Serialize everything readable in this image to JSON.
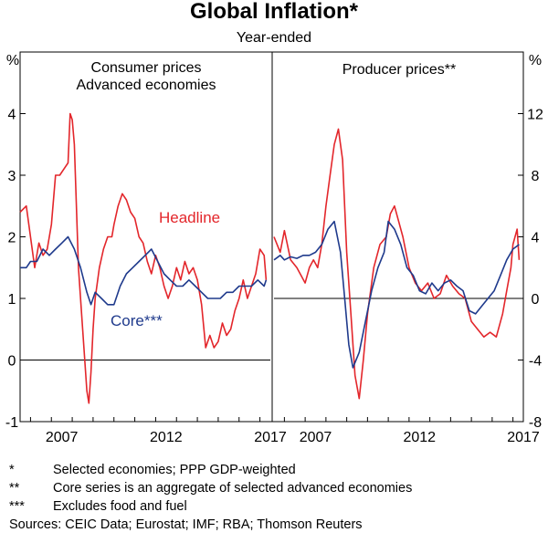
{
  "chart_data": {
    "type": "line",
    "title": "Global Inflation*",
    "subtitle": "Year-ended",
    "footnotes": [
      {
        "mark": "*",
        "text": "Selected economies; PPP GDP-weighted"
      },
      {
        "mark": "**",
        "text": "Core series is an aggregate of selected advanced economies"
      },
      {
        "mark": "***",
        "text": "Excludes food and fuel"
      }
    ],
    "sources": "Sources: CEIC Data; Eurostat; IMF; RBA; Thomson Reuters",
    "panels": [
      {
        "title": "Consumer prices",
        "subtitle": "Advanced economies",
        "yaxis_side": "left",
        "ylabel": "%",
        "ylim": [
          -1,
          5
        ],
        "yticks": [
          "-1",
          "0",
          "1",
          "2",
          "3",
          "4"
        ],
        "xlim": [
          2005.5,
          2017.5
        ],
        "xticks": [
          "2007",
          "2012",
          "2017"
        ],
        "series": [
          {
            "name": "Headline",
            "color": "#e3262b",
            "x": [
              2005.5,
              2005.8,
              2006.0,
              2006.2,
              2006.4,
              2006.6,
              2006.8,
              2007.0,
              2007.2,
              2007.4,
              2007.6,
              2007.8,
              2007.9,
              2008.0,
              2008.1,
              2008.3,
              2008.5,
              2008.7,
              2008.8,
              2008.9,
              2009.0,
              2009.1,
              2009.3,
              2009.5,
              2009.7,
              2009.9,
              2010.0,
              2010.2,
              2010.4,
              2010.6,
              2010.8,
              2011.0,
              2011.2,
              2011.4,
              2011.6,
              2011.8,
              2012.0,
              2012.2,
              2012.4,
              2012.6,
              2012.8,
              2013.0,
              2013.2,
              2013.4,
              2013.6,
              2013.8,
              2014.0,
              2014.2,
              2014.4,
              2014.6,
              2014.8,
              2015.0,
              2015.2,
              2015.4,
              2015.6,
              2015.8,
              2016.0,
              2016.2,
              2016.4,
              2016.6,
              2016.8,
              2017.0,
              2017.2,
              2017.3
            ],
            "values": [
              2.4,
              2.5,
              2.0,
              1.5,
              1.9,
              1.7,
              1.8,
              2.2,
              3.0,
              3.0,
              3.1,
              3.2,
              4.0,
              3.9,
              3.5,
              1.5,
              0.5,
              -0.5,
              -0.7,
              -0.2,
              0.5,
              1.0,
              1.5,
              1.8,
              2.0,
              2.0,
              2.2,
              2.5,
              2.7,
              2.6,
              2.4,
              2.3,
              2.0,
              1.9,
              1.6,
              1.4,
              1.7,
              1.5,
              1.2,
              1.0,
              1.2,
              1.5,
              1.3,
              1.6,
              1.4,
              1.5,
              1.3,
              0.9,
              0.2,
              0.4,
              0.2,
              0.3,
              0.6,
              0.4,
              0.5,
              0.8,
              1.0,
              1.3,
              1.0,
              1.2,
              1.4,
              1.8,
              1.7,
              1.3
            ]
          },
          {
            "name": "Core***",
            "color": "#1f3a8c",
            "x": [
              2005.5,
              2005.8,
              2006.0,
              2006.3,
              2006.6,
              2006.9,
              2007.2,
              2007.5,
              2007.8,
              2008.1,
              2008.4,
              2008.7,
              2008.9,
              2009.1,
              2009.4,
              2009.7,
              2010.0,
              2010.3,
              2010.6,
              2010.9,
              2011.2,
              2011.5,
              2011.8,
              2012.1,
              2012.4,
              2012.7,
              2013.0,
              2013.3,
              2013.6,
              2013.9,
              2014.2,
              2014.5,
              2014.8,
              2015.1,
              2015.4,
              2015.7,
              2016.0,
              2016.3,
              2016.6,
              2016.9,
              2017.2,
              2017.3
            ],
            "values": [
              1.5,
              1.5,
              1.6,
              1.6,
              1.8,
              1.7,
              1.8,
              1.9,
              2.0,
              1.8,
              1.5,
              1.1,
              0.9,
              1.1,
              1.0,
              0.9,
              0.9,
              1.2,
              1.4,
              1.5,
              1.6,
              1.7,
              1.8,
              1.6,
              1.4,
              1.3,
              1.2,
              1.2,
              1.3,
              1.2,
              1.1,
              1.0,
              1.0,
              1.0,
              1.1,
              1.1,
              1.2,
              1.2,
              1.2,
              1.3,
              1.2,
              1.3
            ]
          }
        ],
        "annotations": [
          {
            "text": "Headline",
            "series": "Headline"
          },
          {
            "text": "Core***",
            "series": "Core***"
          }
        ]
      },
      {
        "title": "Producer prices**",
        "yaxis_side": "right",
        "ylabel": "%",
        "ylim": [
          -8,
          16
        ],
        "yticks": [
          "-8",
          "-4",
          "0",
          "4",
          "8",
          "12"
        ],
        "xlim": [
          2005.5,
          2017.5
        ],
        "xticks": [
          "2007",
          "2012",
          "2017"
        ],
        "series": [
          {
            "name": "Headline",
            "color": "#e3262b",
            "x": [
              2005.5,
              2005.8,
              2006.0,
              2006.3,
              2006.6,
              2006.8,
              2007.0,
              2007.2,
              2007.4,
              2007.6,
              2007.8,
              2008.0,
              2008.2,
              2008.4,
              2008.6,
              2008.8,
              2009.0,
              2009.2,
              2009.4,
              2009.6,
              2009.8,
              2010.0,
              2010.3,
              2010.6,
              2010.9,
              2011.1,
              2011.3,
              2011.5,
              2011.7,
              2012.0,
              2012.3,
              2012.6,
              2012.9,
              2013.2,
              2013.5,
              2013.8,
              2014.1,
              2014.4,
              2014.7,
              2015.0,
              2015.3,
              2015.6,
              2015.9,
              2016.2,
              2016.5,
              2016.7,
              2016.9,
              2017.0,
              2017.2,
              2017.3
            ],
            "values": [
              4.0,
              3.0,
              4.4,
              2.5,
              2.0,
              1.5,
              1.0,
              2.0,
              2.5,
              2.0,
              3.5,
              6.0,
              8.0,
              10.0,
              11.0,
              9.0,
              3.0,
              -1.0,
              -5.0,
              -6.5,
              -4.0,
              -1.0,
              2.0,
              3.5,
              4.0,
              5.5,
              6.0,
              5.0,
              4.0,
              2.0,
              1.0,
              0.5,
              1.0,
              0.0,
              0.3,
              1.5,
              0.8,
              0.3,
              0.0,
              -1.5,
              -2.0,
              -2.5,
              -2.2,
              -2.5,
              -1.0,
              0.5,
              2.0,
              3.5,
              4.5,
              2.5
            ]
          },
          {
            "name": "Core",
            "color": "#1f3a8c",
            "x": [
              2005.5,
              2005.8,
              2006.0,
              2006.3,
              2006.6,
              2006.9,
              2007.2,
              2007.5,
              2007.8,
              2008.1,
              2008.4,
              2008.7,
              2008.9,
              2009.1,
              2009.3,
              2009.6,
              2009.9,
              2010.2,
              2010.5,
              2010.8,
              2011.0,
              2011.3,
              2011.6,
              2011.9,
              2012.2,
              2012.5,
              2012.8,
              2013.1,
              2013.4,
              2013.7,
              2014.0,
              2014.3,
              2014.6,
              2014.9,
              2015.2,
              2015.5,
              2015.8,
              2016.1,
              2016.4,
              2016.7,
              2017.0,
              2017.3
            ],
            "values": [
              2.5,
              2.8,
              2.5,
              2.7,
              2.6,
              2.8,
              2.8,
              3.0,
              3.5,
              4.5,
              5.0,
              3.0,
              0.0,
              -3.0,
              -4.5,
              -3.5,
              -1.5,
              0.5,
              2.0,
              3.0,
              5.0,
              4.5,
              3.5,
              2.0,
              1.5,
              0.5,
              0.3,
              1.0,
              0.5,
              1.0,
              1.2,
              0.8,
              0.5,
              -0.8,
              -1.0,
              -0.5,
              0.0,
              0.5,
              1.5,
              2.5,
              3.2,
              3.5
            ]
          }
        ]
      }
    ]
  }
}
